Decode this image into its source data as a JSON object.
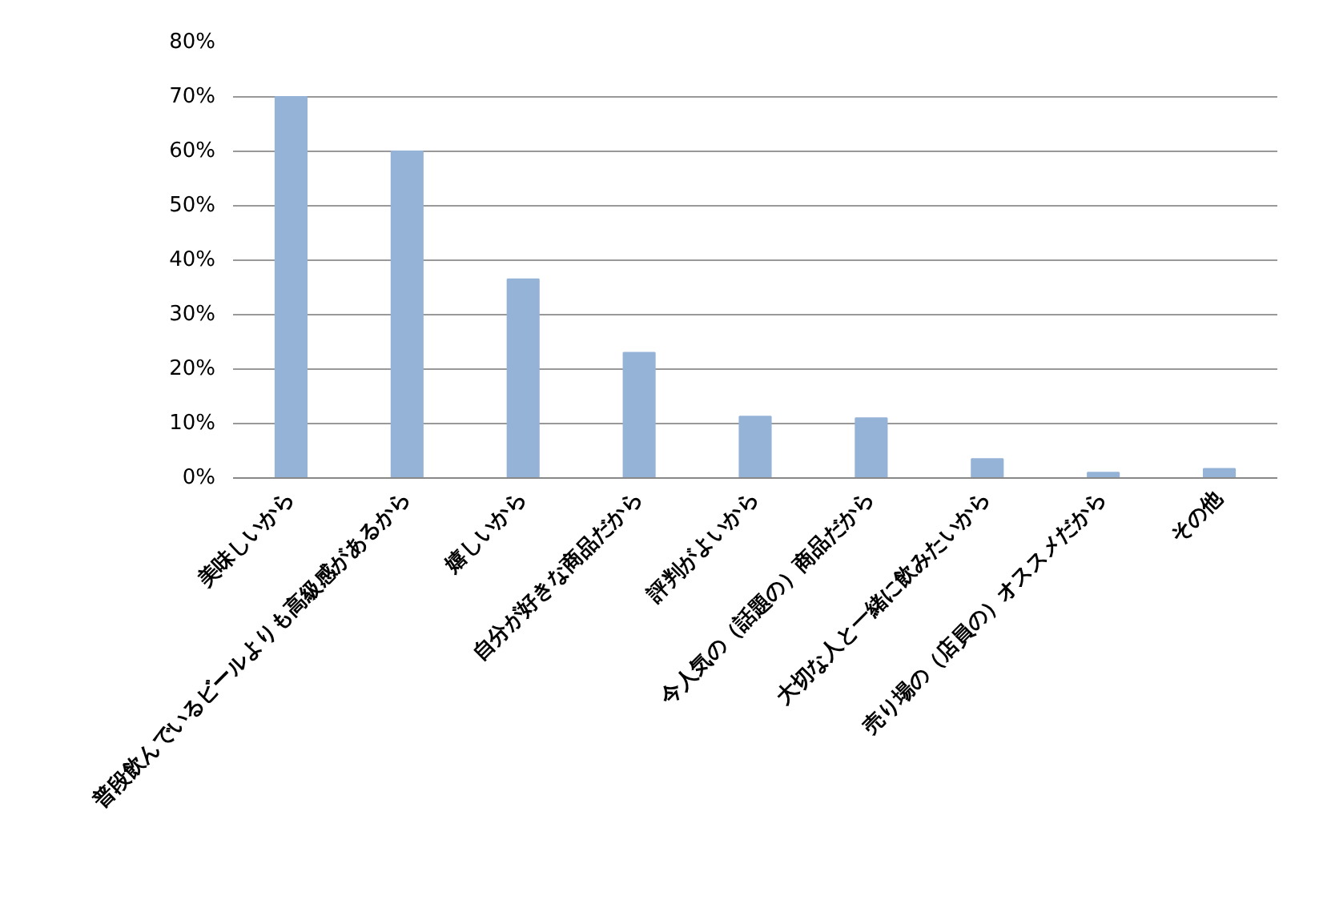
{
  "chart_data": {
    "type": "bar",
    "categories": [
      "美味しいから",
      "普段飲んでいるビールよりも高級感があるから",
      "嬉しいから",
      "自分が好きな商品だから",
      "評判がよいから",
      "今人気の（話題の）商品だから",
      "大切な人と一緒に飲みたいから",
      "売り場の（店員の）オススメだから",
      "その他"
    ],
    "values": [
      70,
      60,
      36.5,
      23,
      11.3,
      11,
      3.5,
      1,
      1.7
    ],
    "color": "#95b3d7",
    "ylim": [
      0,
      80
    ],
    "yticks": [
      {
        "value": 0,
        "label": "0%"
      },
      {
        "value": 10,
        "label": "10%"
      },
      {
        "value": 20,
        "label": "20%"
      },
      {
        "value": 30,
        "label": "30%"
      },
      {
        "value": 40,
        "label": "40%"
      },
      {
        "value": 50,
        "label": "50%"
      },
      {
        "value": 60,
        "label": "60%"
      },
      {
        "value": 70,
        "label": "70%"
      },
      {
        "value": 80,
        "label": "80%"
      }
    ],
    "grid": "y"
  }
}
